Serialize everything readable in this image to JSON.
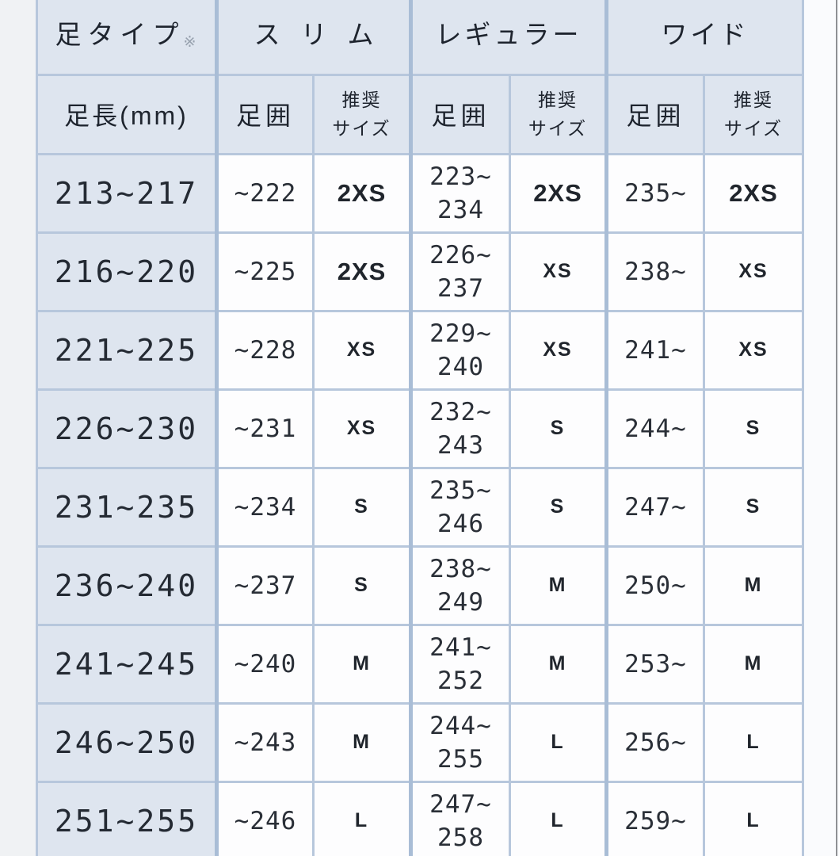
{
  "theme": {
    "header-fill": "#dee5ef",
    "cell-fill": "#fdfdfe",
    "border": "#b7c7dc",
    "border-strong": "#a9bdd6",
    "text": "#1e242e"
  },
  "header": {
    "foot_type": "足タイプ",
    "foot_type_note": "※",
    "groups": [
      "スリム",
      "レギュラー",
      "ワイド"
    ],
    "foot_length": "足長(mm)",
    "girth": "足囲",
    "recommended_size": [
      "推奨",
      "サイズ"
    ]
  },
  "rows": [
    {
      "foot_length": "213~217",
      "slim_girth": "~222",
      "slim_size": "2XS",
      "regular_girth": [
        "223~",
        "234"
      ],
      "regular_size": "2XS",
      "wide_girth": "235~",
      "wide_size": "2XS"
    },
    {
      "foot_length": "216~220",
      "slim_girth": "~225",
      "slim_size": "2XS",
      "regular_girth": [
        "226~",
        "237"
      ],
      "regular_size": "XS",
      "wide_girth": "238~",
      "wide_size": "XS"
    },
    {
      "foot_length": "221~225",
      "slim_girth": "~228",
      "slim_size": "XS",
      "regular_girth": [
        "229~",
        "240"
      ],
      "regular_size": "XS",
      "wide_girth": "241~",
      "wide_size": "XS"
    },
    {
      "foot_length": "226~230",
      "slim_girth": "~231",
      "slim_size": "XS",
      "regular_girth": [
        "232~",
        "243"
      ],
      "regular_size": "S",
      "wide_girth": "244~",
      "wide_size": "S"
    },
    {
      "foot_length": "231~235",
      "slim_girth": "~234",
      "slim_size": "S",
      "regular_girth": [
        "235~",
        "246"
      ],
      "regular_size": "S",
      "wide_girth": "247~",
      "wide_size": "S"
    },
    {
      "foot_length": "236~240",
      "slim_girth": "~237",
      "slim_size": "S",
      "regular_girth": [
        "238~",
        "249"
      ],
      "regular_size": "M",
      "wide_girth": "250~",
      "wide_size": "M"
    },
    {
      "foot_length": "241~245",
      "slim_girth": "~240",
      "slim_size": "M",
      "regular_girth": [
        "241~",
        "252"
      ],
      "regular_size": "M",
      "wide_girth": "253~",
      "wide_size": "M"
    },
    {
      "foot_length": "246~250",
      "slim_girth": "~243",
      "slim_size": "M",
      "regular_girth": [
        "244~",
        "255"
      ],
      "regular_size": "L",
      "wide_girth": "256~",
      "wide_size": "L"
    },
    {
      "foot_length": "251~255",
      "slim_girth": "~246",
      "slim_size": "L",
      "regular_girth": [
        "247~",
        "258"
      ],
      "regular_size": "L",
      "wide_girth": "259~",
      "wide_size": "L"
    }
  ]
}
